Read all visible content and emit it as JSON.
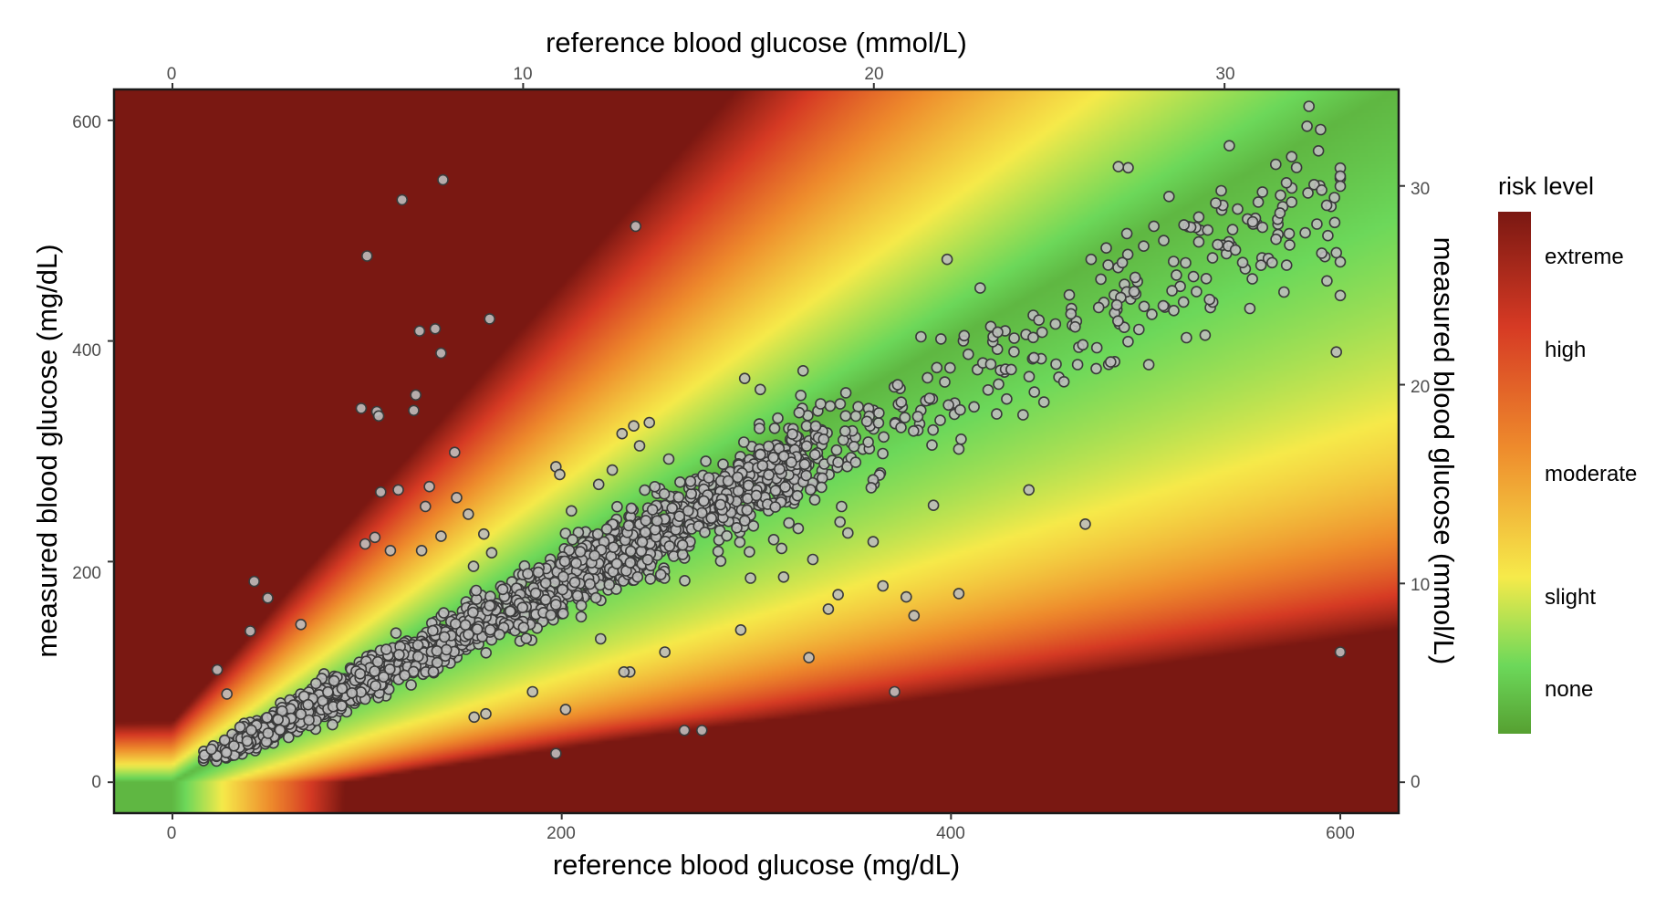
{
  "chart_data": {
    "type": "scatter",
    "title": "",
    "xlabel": "reference blood glucose (mg/dL)",
    "ylabel": "measured blood glucose (mg/dL)",
    "x2label": "reference blood glucose (mmol/L)",
    "y2label": "measured blood glucose (mmol/L)",
    "xlim": [
      -30,
      630
    ],
    "ylim": [
      -28,
      628
    ],
    "x_ticks": [
      "0",
      "200",
      "400",
      "600"
    ],
    "y_ticks": [
      "0",
      "200",
      "400",
      "600"
    ],
    "x2_ticks": [
      "0",
      "10",
      "20",
      "30"
    ],
    "y2_ticks": [
      "0",
      "10",
      "20",
      "30"
    ],
    "mmol_per_mgdl": 0.0555,
    "background": "surveillance error grid risk heatmap",
    "legend": {
      "title": "risk level",
      "labels": [
        "extreme",
        "high",
        "moderate",
        "slight",
        "none"
      ],
      "placement": "right",
      "colors": [
        "#7a1812",
        "#d63a24",
        "#ee8a2c",
        "#f6ea4a",
        "#6cd85a",
        "#56a031"
      ]
    },
    "point_fill": "#bdbdbd",
    "point_stroke": "#3a3a3a",
    "n_points_approx": 2000,
    "outliers": [
      [
        139,
        546
      ],
      [
        118,
        528
      ],
      [
        238,
        504
      ],
      [
        100,
        477
      ],
      [
        127,
        409
      ],
      [
        135,
        411
      ],
      [
        163,
        420
      ],
      [
        138,
        389
      ],
      [
        97,
        339
      ],
      [
        105,
        336
      ],
      [
        106,
        332
      ],
      [
        125,
        351
      ],
      [
        124,
        337
      ],
      [
        145,
        299
      ],
      [
        107,
        263
      ],
      [
        116,
        265
      ],
      [
        146,
        258
      ],
      [
        132,
        268
      ],
      [
        130,
        250
      ],
      [
        138,
        223
      ],
      [
        104,
        222
      ],
      [
        99,
        216
      ],
      [
        112,
        210
      ],
      [
        128,
        210
      ],
      [
        152,
        243
      ],
      [
        160,
        225
      ],
      [
        164,
        208
      ],
      [
        42,
        182
      ],
      [
        49,
        167
      ],
      [
        40,
        137
      ],
      [
        23,
        102
      ],
      [
        28,
        80
      ],
      [
        66,
        143
      ],
      [
        197,
        286
      ],
      [
        199,
        279
      ],
      [
        205,
        246
      ],
      [
        219,
        270
      ],
      [
        226,
        283
      ],
      [
        231,
        316
      ],
      [
        237,
        323
      ],
      [
        245,
        326
      ],
      [
        240,
        305
      ],
      [
        255,
        293
      ],
      [
        202,
        66
      ],
      [
        197,
        26
      ],
      [
        263,
        47
      ],
      [
        272,
        47
      ],
      [
        253,
        118
      ],
      [
        235,
        100
      ],
      [
        232,
        100
      ],
      [
        273,
        255
      ],
      [
        265,
        246
      ],
      [
        249,
        237
      ],
      [
        163,
        160
      ],
      [
        168,
        134
      ],
      [
        185,
        82
      ],
      [
        161,
        62
      ],
      [
        155,
        59
      ],
      [
        197,
        161
      ],
      [
        210,
        150
      ],
      [
        220,
        130
      ],
      [
        294,
        366
      ],
      [
        302,
        356
      ],
      [
        324,
        373
      ],
      [
        311,
        330
      ],
      [
        322,
        335
      ],
      [
        333,
        343
      ],
      [
        346,
        353
      ],
      [
        318,
        290
      ],
      [
        302,
        297
      ],
      [
        300,
        260
      ],
      [
        330,
        256
      ],
      [
        342,
        290
      ],
      [
        351,
        290
      ],
      [
        329,
        202
      ],
      [
        313,
        212
      ],
      [
        297,
        185
      ],
      [
        314,
        186
      ],
      [
        292,
        138
      ],
      [
        327,
        113
      ],
      [
        360,
        218
      ],
      [
        347,
        226
      ],
      [
        343,
        236
      ],
      [
        342,
        170
      ],
      [
        337,
        157
      ],
      [
        359,
        267
      ],
      [
        365,
        178
      ],
      [
        377,
        168
      ],
      [
        381,
        151
      ],
      [
        371,
        82
      ],
      [
        391,
        251
      ],
      [
        404,
        171
      ],
      [
        404,
        302
      ],
      [
        398,
        474
      ],
      [
        415,
        448
      ],
      [
        424,
        408
      ],
      [
        437,
        333
      ],
      [
        440,
        265
      ],
      [
        454,
        379
      ],
      [
        458,
        363
      ],
      [
        469,
        234
      ],
      [
        477,
        456
      ],
      [
        482,
        381
      ],
      [
        472,
        474
      ],
      [
        488,
        471
      ],
      [
        491,
        557
      ],
      [
        486,
        558
      ],
      [
        499,
        486
      ],
      [
        512,
        531
      ],
      [
        536,
        525
      ],
      [
        543,
        577
      ],
      [
        555,
        508
      ],
      [
        560,
        535
      ],
      [
        575,
        567
      ],
      [
        574,
        487
      ],
      [
        569,
        516
      ],
      [
        588,
        506
      ],
      [
        593,
        523
      ],
      [
        582,
        498
      ],
      [
        598,
        480
      ],
      [
        597,
        530
      ],
      [
        598,
        390
      ],
      [
        600,
        118
      ],
      [
        565,
        471
      ],
      [
        560,
        503
      ]
    ],
    "trend": {
      "slope": 0.88,
      "intercept": 6
    }
  }
}
